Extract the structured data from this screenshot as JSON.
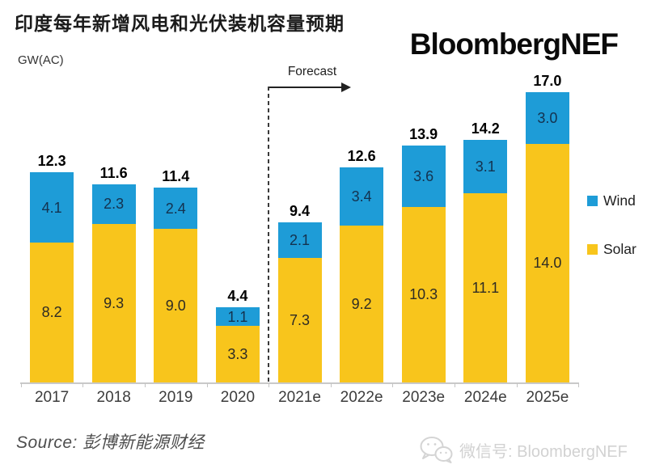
{
  "header": {
    "title": "印度每年新增风电和光伏装机容量预期",
    "unit_label": "GW(AC)",
    "logo": "BloombergNEF"
  },
  "chart_data": {
    "type": "bar",
    "stacked": true,
    "title": "印度每年新增风电和光伏装机容量预期",
    "ylabel": "GW(AC)",
    "ylim": [
      0,
      17.5
    ],
    "grid": false,
    "legend_position": "right",
    "categories": [
      "2017",
      "2018",
      "2019",
      "2020",
      "2021e",
      "2022e",
      "2023e",
      "2024e",
      "2025e"
    ],
    "series": [
      {
        "name": "Solar",
        "color": "#f8c51c",
        "values": [
          8.2,
          9.3,
          9.0,
          3.3,
          7.3,
          9.2,
          10.3,
          11.1,
          14.0
        ]
      },
      {
        "name": "Wind",
        "color": "#1e9cd7",
        "values": [
          4.1,
          2.3,
          2.4,
          1.1,
          2.1,
          3.4,
          3.6,
          3.1,
          3.0
        ]
      }
    ],
    "totals": [
      12.3,
      11.6,
      11.4,
      4.4,
      9.4,
      12.6,
      13.9,
      14.2,
      17.0
    ],
    "forecast_label": "Forecast",
    "forecast_start_index": 4
  },
  "legend": {
    "items": [
      {
        "label": "Wind",
        "color": "#1e9cd7"
      },
      {
        "label": "Solar",
        "color": "#f8c51c"
      }
    ]
  },
  "footer": {
    "source": "Source: 彭博新能源财经",
    "wechat": "微信号: BloombergNEF",
    "wechat_icon": "wechat-icon"
  }
}
